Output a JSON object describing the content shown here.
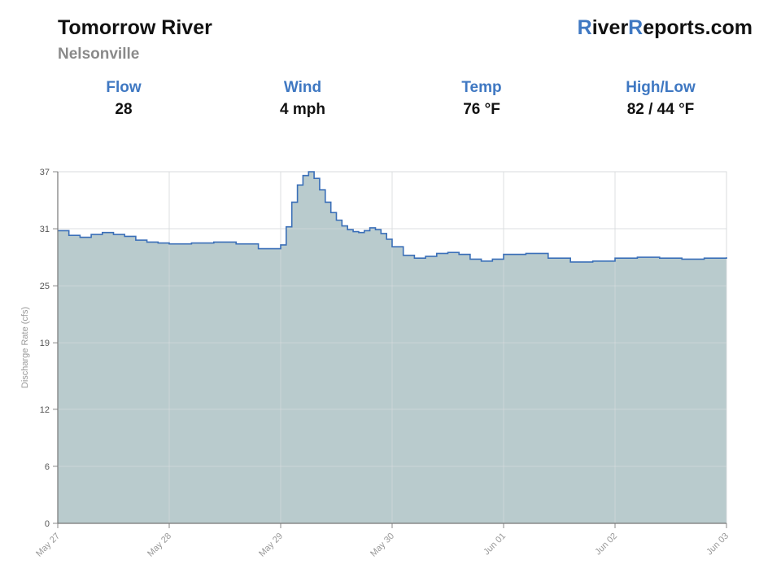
{
  "header": {
    "title": "Tomorrow River",
    "subtitle": "Nelsonville",
    "brand": {
      "r1": "R",
      "mid": "iver",
      "r2": "R",
      "rest": "eports.com"
    }
  },
  "stats": [
    {
      "label": "Flow",
      "value": "28"
    },
    {
      "label": "Wind",
      "value": "4 mph"
    },
    {
      "label": "Temp",
      "value": "76 °F"
    },
    {
      "label": "High/Low",
      "value": "82 / 44 °F"
    }
  ],
  "colors": {
    "accent": "#3f78c2",
    "fill": "#b9cbcd",
    "line": "#3a6fb8",
    "grid": "#e2e2e2"
  },
  "chart_data": {
    "type": "area",
    "ylabel": "Discharge Rate (cfs)",
    "ylim": [
      0,
      37
    ],
    "yticks": [
      0,
      6,
      12,
      19,
      25,
      31,
      37
    ],
    "xlabels": [
      "May 27",
      "May 28",
      "May 29",
      "May 30",
      "Jun 01",
      "Jun 02",
      "Jun 03"
    ],
    "grid": true,
    "series": [
      {
        "x": [
          0,
          0.1,
          0.2,
          0.3,
          0.4,
          0.5,
          0.6,
          0.7,
          0.8,
          0.9,
          1.0,
          1.2,
          1.4,
          1.6,
          1.8,
          2.0,
          2.05,
          2.1,
          2.15,
          2.2,
          2.25,
          2.3,
          2.35,
          2.4,
          2.45,
          2.5,
          2.55,
          2.6,
          2.65,
          2.7,
          2.75,
          2.8,
          2.85,
          2.9,
          2.95,
          3.0,
          3.1,
          3.2,
          3.3,
          3.4,
          3.5,
          3.6,
          3.7,
          3.8,
          3.9,
          4.0,
          4.2,
          4.4,
          4.6,
          4.8,
          5.0,
          5.2,
          5.4,
          5.6,
          5.8,
          6.0
        ],
        "y": [
          30.8,
          30.3,
          30.1,
          30.4,
          30.6,
          30.4,
          30.2,
          29.8,
          29.6,
          29.5,
          29.4,
          29.5,
          29.6,
          29.4,
          28.9,
          29.3,
          31.2,
          33.8,
          35.6,
          36.6,
          37.0,
          36.3,
          35.1,
          33.8,
          32.7,
          31.9,
          31.3,
          30.9,
          30.7,
          30.6,
          30.8,
          31.1,
          30.9,
          30.5,
          29.9,
          29.1,
          28.2,
          27.9,
          28.1,
          28.4,
          28.5,
          28.3,
          27.8,
          27.6,
          27.8,
          28.3,
          28.4,
          27.9,
          27.5,
          27.6,
          27.9,
          28.0,
          27.9,
          27.8,
          27.9,
          28.0
        ]
      }
    ]
  }
}
